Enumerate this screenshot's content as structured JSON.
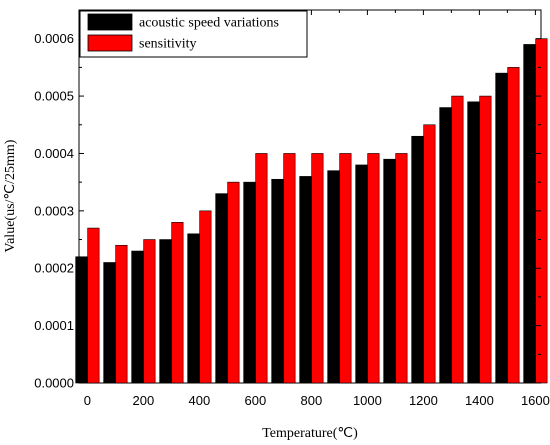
{
  "chart_data": {
    "type": "bar",
    "xlabel": "Temperature(℃)",
    "ylabel": "Value(us/℃/25mm)",
    "x": [
      0,
      100,
      200,
      300,
      400,
      500,
      600,
      700,
      800,
      900,
      1000,
      1100,
      1200,
      1300,
      1400,
      1500,
      1600
    ],
    "x_ticks": [
      "0",
      "200",
      "400",
      "600",
      "800",
      "1000",
      "1200",
      "1400",
      "1600"
    ],
    "y_ticks": [
      "0.0000",
      "0.0001",
      "0.0002",
      "0.0003",
      "0.0004",
      "0.0005",
      "0.0006"
    ],
    "xlim": [
      -30,
      1620
    ],
    "ylim": [
      0,
      0.00065
    ],
    "series": [
      {
        "name": "acoustic speed variations",
        "color": "#000000",
        "values": [
          0.00022,
          0.00021,
          0.00023,
          0.00025,
          0.00026,
          0.00033,
          0.00035,
          0.000355,
          0.00036,
          0.00037,
          0.00038,
          0.00039,
          0.00043,
          0.00048,
          0.00049,
          0.00054,
          0.00059
        ]
      },
      {
        "name": "sensitivity",
        "color": "#ff0000",
        "values": [
          0.00027,
          0.00024,
          0.00025,
          0.00028,
          0.0003,
          0.00035,
          0.0004,
          0.0004,
          0.0004,
          0.0004,
          0.0004,
          0.0004,
          0.00045,
          0.0005,
          0.0005,
          0.00055,
          0.0006
        ]
      }
    ],
    "legend_position": "top-left",
    "grid": false
  }
}
